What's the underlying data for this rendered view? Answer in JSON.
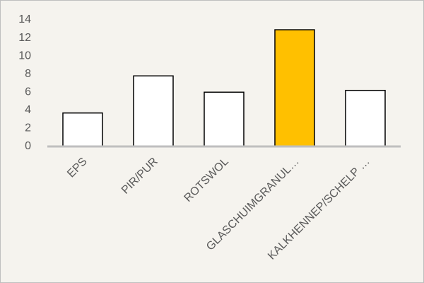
{
  "chart_data": {
    "type": "bar",
    "categories": [
      "EPS",
      "PIR/PUR",
      "ROTSWOL",
      "GLASCHUIMGRANUL…",
      "KALKHENNEP/SCHELP …"
    ],
    "values": [
      3.7,
      7.8,
      6.0,
      12.9,
      6.2
    ],
    "colors": [
      "#ffffff",
      "#ffffff",
      "#ffffff",
      "#ffc000",
      "#ffffff"
    ],
    "ylim": [
      0,
      14
    ],
    "yticks": [
      0,
      2,
      4,
      6,
      8,
      10,
      12,
      14
    ],
    "grid": false
  }
}
